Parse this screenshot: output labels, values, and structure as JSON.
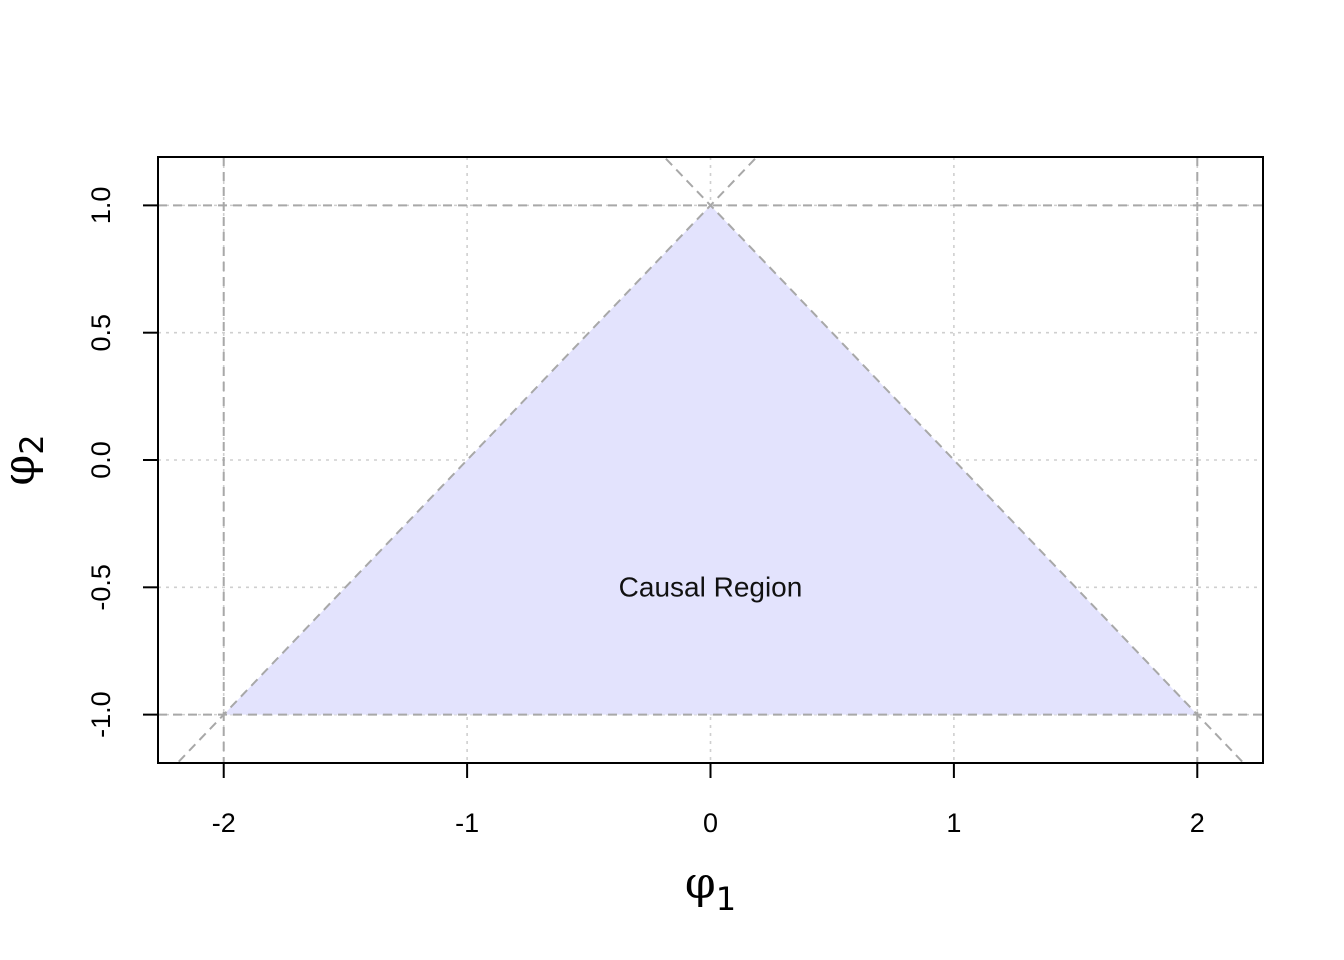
{
  "chart_data": {
    "type": "area",
    "xlabel": {
      "symbol": "φ",
      "subscript": "1"
    },
    "ylabel": {
      "symbol": "φ",
      "subscript": "2"
    },
    "xlim": [
      -2.27,
      2.27
    ],
    "ylim": [
      -1.19,
      1.19
    ],
    "x_ticks": [
      {
        "value": -2,
        "label": "-2"
      },
      {
        "value": -1,
        "label": "-1"
      },
      {
        "value": 0,
        "label": "0"
      },
      {
        "value": 1,
        "label": "1"
      },
      {
        "value": 2,
        "label": "2"
      }
    ],
    "y_ticks": [
      {
        "value": -1,
        "label": "-1.0"
      },
      {
        "value": -0.5,
        "label": "-0.5"
      },
      {
        "value": 0,
        "label": "0.0"
      },
      {
        "value": 0.5,
        "label": "0.5"
      },
      {
        "value": 1,
        "label": "1.0"
      }
    ],
    "grid": true,
    "region": {
      "vertices": [
        [
          -2,
          -1
        ],
        [
          0,
          1
        ],
        [
          2,
          -1
        ]
      ],
      "fill": "#e3e3fd",
      "label": "Causal Region",
      "label_position": [
        0,
        -0.5
      ]
    },
    "boundary_lines": {
      "color": "#a8a8a8",
      "horizontal": [
        -1,
        1
      ],
      "vertical": [
        -2,
        2
      ],
      "diagonals": [
        {
          "slope": 1,
          "intercept": 1
        },
        {
          "slope": -1,
          "intercept": 1
        }
      ]
    }
  }
}
